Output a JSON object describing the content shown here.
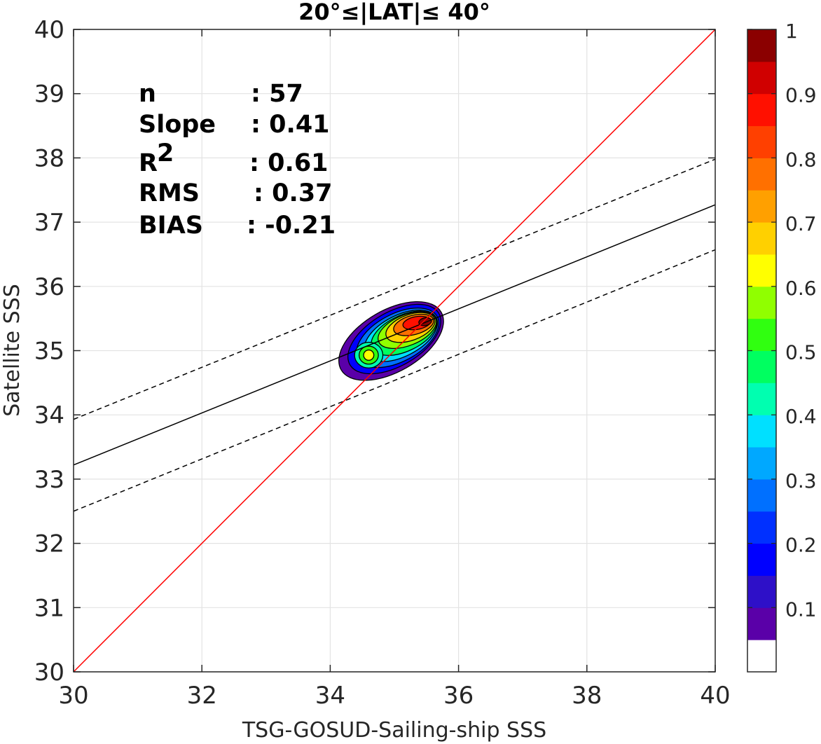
{
  "chart_data": {
    "type": "contour-scatter",
    "title": "20°≤|LAT|≤ 40°",
    "xlabel": "TSG-GOSUD-Sailing-ship SSS",
    "ylabel": "Satellite SSS",
    "xlim": [
      30,
      40
    ],
    "ylim": [
      30,
      40
    ],
    "xticks": [
      "30",
      "32",
      "34",
      "36",
      "38",
      "40"
    ],
    "yticks": [
      "30",
      "31",
      "32",
      "33",
      "34",
      "35",
      "36",
      "37",
      "38",
      "39",
      "40"
    ],
    "grid": true,
    "stats": [
      {
        "label": "n",
        "value": ": 57"
      },
      {
        "label": "Slope",
        "value": ": 0.41"
      },
      {
        "label": "R",
        "sup": "2",
        "value": ": 0.61"
      },
      {
        "label": "RMS",
        "value": ": 0.37"
      },
      {
        "label": "BIAS",
        "value": ": -0.21"
      }
    ],
    "one_to_one_line": {
      "x": [
        30,
        40
      ],
      "y": [
        30,
        40
      ],
      "color": "#ff0000"
    },
    "fit_line": {
      "x": [
        30,
        40
      ],
      "y": [
        33.22,
        37.27
      ],
      "color": "#000000"
    },
    "confidence_upper": {
      "x": [
        30,
        40
      ],
      "y": [
        33.93,
        37.98
      ],
      "style": "dashed"
    },
    "confidence_lower": {
      "x": [
        30,
        40
      ],
      "y": [
        32.5,
        36.57
      ],
      "style": "dashed"
    },
    "density_contours": [
      {
        "level": 0.05,
        "center": [
          34.95,
          35.15
        ],
        "rx": 0.9,
        "ry": 0.48,
        "angle": 30
      },
      {
        "level": 0.15,
        "center": [
          35.0,
          35.18
        ],
        "rx": 0.8,
        "ry": 0.42,
        "angle": 30
      },
      {
        "level": 0.25,
        "center": [
          35.05,
          35.2
        ],
        "rx": 0.7,
        "ry": 0.37,
        "angle": 28
      },
      {
        "level": 0.35,
        "center": [
          35.1,
          35.23
        ],
        "rx": 0.62,
        "ry": 0.32,
        "angle": 27
      },
      {
        "level": 0.45,
        "center": [
          35.15,
          35.27
        ],
        "rx": 0.55,
        "ry": 0.28,
        "angle": 25
      },
      {
        "level": 0.55,
        "center": [
          35.2,
          35.32
        ],
        "rx": 0.48,
        "ry": 0.24,
        "angle": 22
      },
      {
        "level": 0.65,
        "center": [
          35.25,
          35.36
        ],
        "rx": 0.4,
        "ry": 0.2,
        "angle": 20
      },
      {
        "level": 0.75,
        "center": [
          35.3,
          35.4
        ],
        "rx": 0.32,
        "ry": 0.15,
        "angle": 15
      },
      {
        "level": 0.85,
        "center": [
          35.35,
          35.43
        ],
        "rx": 0.22,
        "ry": 0.1,
        "angle": 10
      },
      {
        "level": 0.95,
        "center": [
          35.48,
          35.45
        ],
        "rx": 0.1,
        "ry": 0.06,
        "angle": 10
      }
    ],
    "secondary_peak": {
      "center": [
        34.6,
        34.93
      ],
      "level": 0.6
    },
    "colorbar": {
      "ticks": [
        "0.1",
        "0.2",
        "0.3",
        "0.4",
        "0.5",
        "0.6",
        "0.7",
        "0.8",
        "0.9",
        "1"
      ],
      "tick_values": [
        0.1,
        0.2,
        0.3,
        0.4,
        0.5,
        0.6,
        0.7,
        0.8,
        0.9,
        1.0
      ],
      "colors": [
        "#ffffff",
        "#5a00a8",
        "#2e10c8",
        "#0000ff",
        "#0030ff",
        "#0070ff",
        "#00a8ff",
        "#00e0ff",
        "#00ffb0",
        "#00ff60",
        "#30ff10",
        "#90ff00",
        "#ffff00",
        "#ffd000",
        "#ffa000",
        "#ff7000",
        "#ff4000",
        "#ff1000",
        "#d00000",
        "#8b0000"
      ]
    }
  }
}
